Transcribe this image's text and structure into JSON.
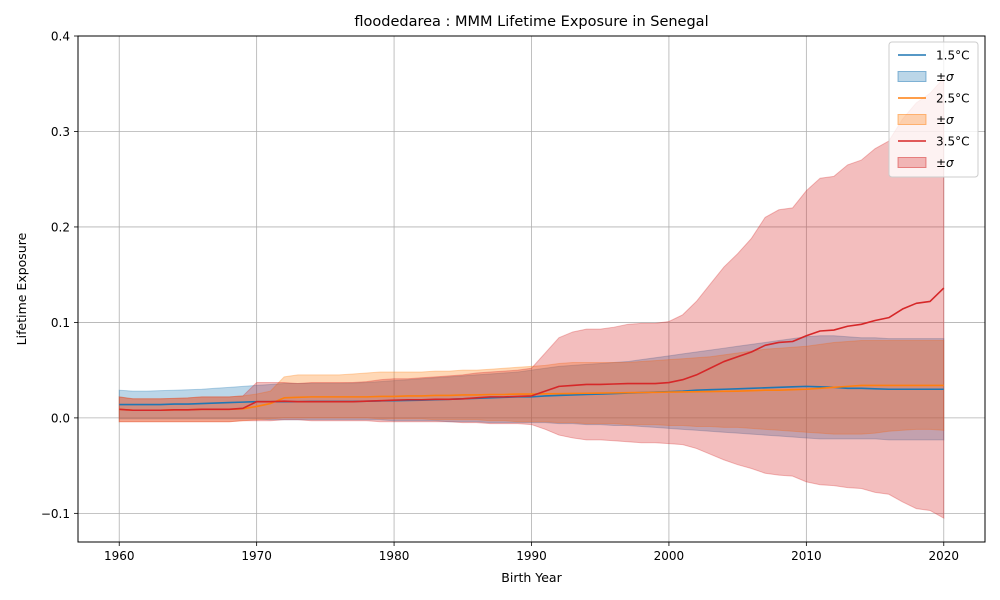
{
  "chart_data": {
    "type": "line",
    "title": "floodedarea : MMM Lifetime Exposure in Senegal",
    "xlabel": "Birth Year",
    "ylabel": "Lifetime Exposure",
    "xlim": [
      1957,
      2023
    ],
    "ylim": [
      -0.13,
      0.4
    ],
    "xticks": [
      1960,
      1970,
      1980,
      1990,
      2000,
      2010,
      2020
    ],
    "yticks": [
      -0.1,
      0.0,
      0.1,
      0.2,
      0.3,
      0.4
    ],
    "ytick_labels": [
      "−0.1",
      "0.0",
      "0.1",
      "0.2",
      "0.3",
      "0.4"
    ],
    "grid": true,
    "legend_position": "top-right",
    "x": [
      1960,
      1961,
      1962,
      1963,
      1964,
      1965,
      1966,
      1967,
      1968,
      1969,
      1970,
      1971,
      1972,
      1973,
      1974,
      1975,
      1976,
      1977,
      1978,
      1979,
      1980,
      1981,
      1982,
      1983,
      1984,
      1985,
      1986,
      1987,
      1988,
      1989,
      1990,
      1991,
      1992,
      1993,
      1994,
      1995,
      1996,
      1997,
      1998,
      1999,
      2000,
      2001,
      2002,
      2003,
      2004,
      2005,
      2006,
      2007,
      2008,
      2009,
      2010,
      2011,
      2012,
      2013,
      2014,
      2015,
      2016,
      2017,
      2018,
      2019,
      2020
    ],
    "series": [
      {
        "name": "1.5°C",
        "band_label": "±σ",
        "color": "#1f77b4",
        "mean": [
          0.014,
          0.014,
          0.014,
          0.014,
          0.0145,
          0.0145,
          0.015,
          0.0155,
          0.016,
          0.0165,
          0.017,
          0.017,
          0.017,
          0.017,
          0.0172,
          0.0172,
          0.0172,
          0.0172,
          0.0175,
          0.0178,
          0.018,
          0.0182,
          0.0185,
          0.019,
          0.0195,
          0.02,
          0.0205,
          0.021,
          0.0215,
          0.022,
          0.022,
          0.023,
          0.0235,
          0.024,
          0.0245,
          0.025,
          0.0255,
          0.026,
          0.0265,
          0.027,
          0.0275,
          0.028,
          0.029,
          0.0295,
          0.03,
          0.0305,
          0.031,
          0.0315,
          0.032,
          0.0325,
          0.033,
          0.0325,
          0.032,
          0.031,
          0.031,
          0.0305,
          0.03,
          0.03,
          0.03,
          0.03,
          0.03
        ],
        "upper": [
          0.029,
          0.028,
          0.028,
          0.0285,
          0.029,
          0.0295,
          0.03,
          0.031,
          0.032,
          0.033,
          0.034,
          0.035,
          0.036,
          0.036,
          0.036,
          0.036,
          0.036,
          0.0365,
          0.037,
          0.038,
          0.039,
          0.04,
          0.041,
          0.042,
          0.043,
          0.044,
          0.045,
          0.046,
          0.047,
          0.048,
          0.05,
          0.052,
          0.054,
          0.055,
          0.056,
          0.057,
          0.058,
          0.059,
          0.061,
          0.063,
          0.065,
          0.067,
          0.069,
          0.071,
          0.073,
          0.075,
          0.077,
          0.079,
          0.081,
          0.083,
          0.085,
          0.086,
          0.086,
          0.085,
          0.084,
          0.084,
          0.083,
          0.083,
          0.083,
          0.083,
          0.083
        ],
        "lower": [
          -0.001,
          -0.001,
          -0.001,
          -0.001,
          -0.001,
          -0.001,
          -0.001,
          -0.001,
          -0.001,
          -0.001,
          -0.001,
          -0.002,
          -0.002,
          -0.002,
          -0.002,
          -0.002,
          -0.002,
          -0.002,
          -0.002,
          -0.002,
          -0.003,
          -0.003,
          -0.003,
          -0.003,
          -0.004,
          -0.004,
          -0.004,
          -0.005,
          -0.005,
          -0.005,
          -0.005,
          -0.005,
          -0.006,
          -0.006,
          -0.007,
          -0.007,
          -0.008,
          -0.008,
          -0.009,
          -0.01,
          -0.011,
          -0.012,
          -0.013,
          -0.014,
          -0.015,
          -0.016,
          -0.017,
          -0.018,
          -0.019,
          -0.02,
          -0.021,
          -0.022,
          -0.022,
          -0.022,
          -0.022,
          -0.022,
          -0.023,
          -0.023,
          -0.023,
          -0.023,
          -0.023
        ]
      },
      {
        "name": "2.5°C",
        "band_label": "±σ",
        "color": "#ff7f0e",
        "mean": [
          0.009,
          0.008,
          0.008,
          0.008,
          0.0085,
          0.0085,
          0.009,
          0.009,
          0.009,
          0.0095,
          0.012,
          0.015,
          0.021,
          0.0215,
          0.022,
          0.022,
          0.022,
          0.022,
          0.022,
          0.0225,
          0.0225,
          0.023,
          0.023,
          0.0235,
          0.0235,
          0.024,
          0.024,
          0.0245,
          0.0245,
          0.025,
          0.025,
          0.0252,
          0.0254,
          0.0256,
          0.0258,
          0.026,
          0.0262,
          0.0264,
          0.0266,
          0.0268,
          0.027,
          0.0272,
          0.0274,
          0.0276,
          0.0278,
          0.028,
          0.0285,
          0.029,
          0.029,
          0.0295,
          0.03,
          0.031,
          0.032,
          0.033,
          0.034,
          0.034,
          0.034,
          0.034,
          0.034,
          0.034,
          0.034
        ],
        "upper": [
          0.022,
          0.02,
          0.02,
          0.02,
          0.0205,
          0.021,
          0.022,
          0.022,
          0.022,
          0.023,
          0.025,
          0.028,
          0.043,
          0.045,
          0.045,
          0.045,
          0.045,
          0.046,
          0.047,
          0.048,
          0.048,
          0.048,
          0.048,
          0.049,
          0.049,
          0.05,
          0.05,
          0.051,
          0.052,
          0.053,
          0.054,
          0.055,
          0.057,
          0.058,
          0.058,
          0.058,
          0.058,
          0.058,
          0.059,
          0.06,
          0.061,
          0.062,
          0.063,
          0.064,
          0.066,
          0.068,
          0.07,
          0.072,
          0.073,
          0.074,
          0.075,
          0.077,
          0.079,
          0.08,
          0.081,
          0.081,
          0.081,
          0.081,
          0.081,
          0.081,
          0.081
        ],
        "lower": [
          -0.004,
          -0.004,
          -0.004,
          -0.004,
          -0.004,
          -0.004,
          -0.004,
          -0.004,
          -0.004,
          -0.003,
          -0.002,
          -0.001,
          0.0,
          0.0,
          0.0,
          0.0,
          0.0,
          0.0,
          0.0,
          -0.001,
          -0.001,
          -0.001,
          -0.001,
          -0.002,
          -0.002,
          -0.002,
          -0.002,
          -0.003,
          -0.003,
          -0.004,
          -0.004,
          -0.004,
          -0.005,
          -0.005,
          -0.006,
          -0.006,
          -0.006,
          -0.007,
          -0.007,
          -0.007,
          -0.008,
          -0.008,
          -0.009,
          -0.009,
          -0.01,
          -0.01,
          -0.011,
          -0.012,
          -0.013,
          -0.014,
          -0.015,
          -0.016,
          -0.017,
          -0.017,
          -0.017,
          -0.016,
          -0.014,
          -0.013,
          -0.012,
          -0.012,
          -0.013
        ]
      },
      {
        "name": "3.5°C",
        "band_label": "±σ",
        "color": "#d62728",
        "mean": [
          0.009,
          0.008,
          0.008,
          0.008,
          0.0085,
          0.0085,
          0.009,
          0.009,
          0.009,
          0.01,
          0.017,
          0.017,
          0.0175,
          0.017,
          0.017,
          0.017,
          0.017,
          0.017,
          0.0175,
          0.018,
          0.0185,
          0.019,
          0.019,
          0.0195,
          0.0195,
          0.02,
          0.021,
          0.022,
          0.022,
          0.0225,
          0.023,
          0.028,
          0.033,
          0.034,
          0.035,
          0.035,
          0.0355,
          0.036,
          0.036,
          0.036,
          0.037,
          0.04,
          0.045,
          0.052,
          0.059,
          0.064,
          0.069,
          0.076,
          0.079,
          0.08,
          0.086,
          0.091,
          0.092,
          0.096,
          0.098,
          0.102,
          0.105,
          0.114,
          0.12,
          0.122,
          0.136
        ],
        "upper": [
          0.022,
          0.02,
          0.02,
          0.02,
          0.0205,
          0.021,
          0.022,
          0.022,
          0.022,
          0.023,
          0.037,
          0.037,
          0.037,
          0.036,
          0.037,
          0.037,
          0.037,
          0.037,
          0.038,
          0.04,
          0.041,
          0.041,
          0.042,
          0.043,
          0.044,
          0.045,
          0.047,
          0.048,
          0.049,
          0.05,
          0.052,
          0.068,
          0.084,
          0.09,
          0.093,
          0.093,
          0.095,
          0.098,
          0.099,
          0.099,
          0.101,
          0.108,
          0.122,
          0.14,
          0.158,
          0.172,
          0.188,
          0.21,
          0.218,
          0.22,
          0.238,
          0.251,
          0.253,
          0.265,
          0.27,
          0.282,
          0.29,
          0.313,
          0.33,
          0.34,
          0.356
        ],
        "lower": [
          -0.004,
          -0.004,
          -0.004,
          -0.004,
          -0.004,
          -0.004,
          -0.004,
          -0.004,
          -0.004,
          -0.003,
          -0.003,
          -0.003,
          -0.002,
          -0.002,
          -0.003,
          -0.003,
          -0.003,
          -0.003,
          -0.003,
          -0.004,
          -0.004,
          -0.004,
          -0.004,
          -0.004,
          -0.004,
          -0.005,
          -0.005,
          -0.006,
          -0.006,
          -0.006,
          -0.007,
          -0.012,
          -0.018,
          -0.021,
          -0.023,
          -0.023,
          -0.024,
          -0.025,
          -0.026,
          -0.026,
          -0.027,
          -0.028,
          -0.032,
          -0.038,
          -0.044,
          -0.049,
          -0.053,
          -0.058,
          -0.06,
          -0.061,
          -0.067,
          -0.07,
          -0.071,
          -0.073,
          -0.074,
          -0.078,
          -0.08,
          -0.088,
          -0.095,
          -0.097,
          -0.105
        ]
      }
    ]
  }
}
